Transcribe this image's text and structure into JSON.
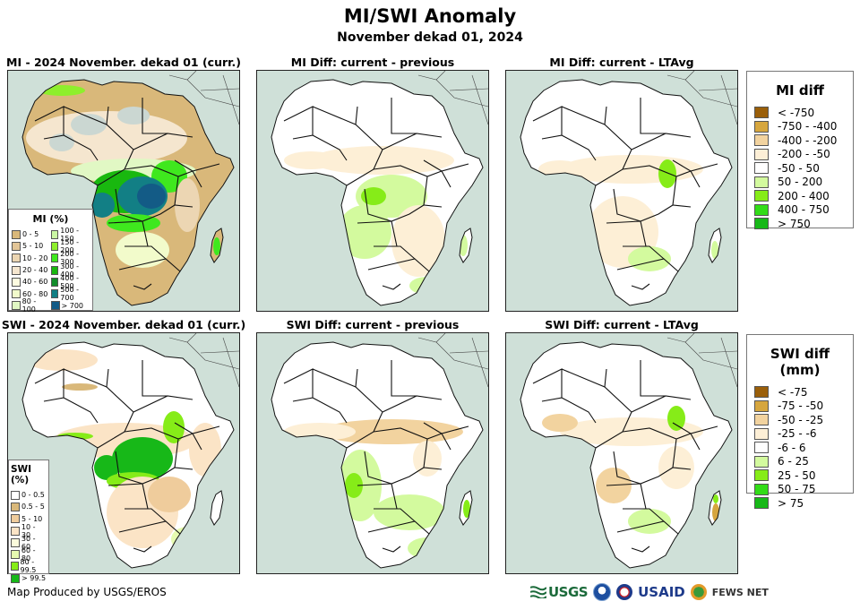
{
  "header": {
    "title": "MI/SWI Anomaly",
    "subtitle": "November dekad 01, 2024"
  },
  "panels": [
    {
      "id": "mi-current",
      "title": "MI - 2024 November. dekad 01 (curr.)",
      "variable": "MI",
      "kind": "current"
    },
    {
      "id": "mi-diff-prev",
      "title": "MI Diff: current - previous",
      "variable": "MI",
      "kind": "diff"
    },
    {
      "id": "mi-diff-ltavg",
      "title": "MI Diff: current - LTAvg",
      "variable": "MI",
      "kind": "diff"
    },
    {
      "id": "swi-current",
      "title": "SWI - 2024 November. dekad 01 (curr.)",
      "variable": "SWI",
      "kind": "current"
    },
    {
      "id": "swi-diff-prev",
      "title": "SWI Diff: current - previous",
      "variable": "SWI",
      "kind": "diff"
    },
    {
      "id": "swi-diff-ltavg",
      "title": "SWI Diff: current - LTAvg",
      "variable": "SWI",
      "kind": "diff"
    }
  ],
  "legends": {
    "mi_current": {
      "title": "MI (%)",
      "items": [
        {
          "label": "0 - 5",
          "color": "#d9b87a"
        },
        {
          "label": "5 - 10",
          "color": "#e2c597"
        },
        {
          "label": "10 - 20",
          "color": "#ecd6b3"
        },
        {
          "label": "20 - 40",
          "color": "#f5e6cf"
        },
        {
          "label": "40 - 60",
          "color": "#fdfbe0"
        },
        {
          "label": "60 - 80",
          "color": "#f2fbcb"
        },
        {
          "label": "80 - 100",
          "color": "#e1f8c4"
        },
        {
          "label": "100 - 150",
          "color": "#cbf7a4"
        },
        {
          "label": "150 - 200",
          "color": "#8eef2c"
        },
        {
          "label": "200 - 300",
          "color": "#3fe81e"
        },
        {
          "label": "300 - 400",
          "color": "#19b80f"
        },
        {
          "label": "400 - 500",
          "color": "#128c2a"
        },
        {
          "label": "500 - 700",
          "color": "#127f85"
        },
        {
          "label": "> 700",
          "color": "#135b86"
        }
      ]
    },
    "swi_current": {
      "title": "SWI (%)",
      "items": [
        {
          "label": "0 - 0.5",
          "color": "#ffffff"
        },
        {
          "label": "0.5 - 5",
          "color": "#d9b87a"
        },
        {
          "label": "5 - 10",
          "color": "#efcc9c"
        },
        {
          "label": "10 - 30",
          "color": "#fbe4c6"
        },
        {
          "label": "30 - 60",
          "color": "#fbfbdc"
        },
        {
          "label": "60 - 80",
          "color": "#e6fab0"
        },
        {
          "label": "80 - 99.5",
          "color": "#86ec18"
        },
        {
          "label": "> 99.5",
          "color": "#17b818"
        }
      ]
    },
    "mi_diff": {
      "title": "MI diff",
      "items": [
        {
          "label": "< -750",
          "color": "#9a5f0a"
        },
        {
          "label": "-750 - -400",
          "color": "#d6a63e"
        },
        {
          "label": "-400 - -200",
          "color": "#f2d39f"
        },
        {
          "label": "-200 - -50",
          "color": "#fdefd6"
        },
        {
          "label": "-50 - 50",
          "color": "#ffffff"
        },
        {
          "label": "50 - 200",
          "color": "#d3fa9e"
        },
        {
          "label": "200 - 400",
          "color": "#86ec18"
        },
        {
          "label": "400 - 750",
          "color": "#32dc18"
        },
        {
          "label": "> 750",
          "color": "#17b818"
        }
      ]
    },
    "swi_diff": {
      "title": "SWI diff (mm)",
      "items": [
        {
          "label": "< -75",
          "color": "#9a5f0a"
        },
        {
          "label": "-75 - -50",
          "color": "#d6a63e"
        },
        {
          "label": "-50 - -25",
          "color": "#f2d39f"
        },
        {
          "label": "-25 - -6",
          "color": "#fdefd6"
        },
        {
          "label": "-6 - 6",
          "color": "#ffffff"
        },
        {
          "label": "6 - 25",
          "color": "#d3fa9e"
        },
        {
          "label": "25 - 50",
          "color": "#86ec18"
        },
        {
          "label": "50 - 75",
          "color": "#32dc18"
        },
        {
          "label": "> 75",
          "color": "#17b818"
        }
      ]
    }
  },
  "footer": {
    "credit": "Map Produced by USGS/EROS",
    "logos": [
      {
        "name": "usgs",
        "label": "USGS"
      },
      {
        "name": "noaa",
        "label": ""
      },
      {
        "name": "usaid-seal",
        "label": ""
      },
      {
        "name": "usaid",
        "label": "USAID"
      },
      {
        "name": "fews-net",
        "label": "FEWS NET"
      }
    ]
  },
  "colors": {
    "ocean": "#cfe0d8",
    "nodata": "#d3dcd8",
    "border": "#111111"
  }
}
